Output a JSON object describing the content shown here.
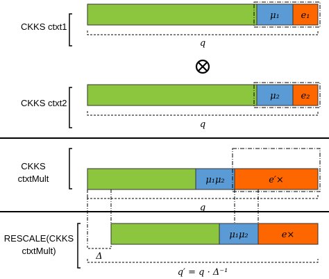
{
  "diagram": {
    "colors": {
      "data": "#8cc63e",
      "message": "#5b9bd5",
      "error": "#fe6600",
      "outline": "#333333"
    },
    "rows": [
      {
        "label": "CKKS ctxt1",
        "message": "μ₁",
        "error": "e₁",
        "modulus": "q"
      },
      {
        "label": "CKKS ctxt2",
        "message": "μ₂",
        "error": "e₂",
        "modulus": "q"
      },
      {
        "label_lines": [
          "CKKS",
          "ctxtMult"
        ],
        "message": "μ₁μ₂",
        "error": "e′×",
        "modulus": "q"
      },
      {
        "label_lines": [
          "RESCALE(CKKS",
          "ctxtMult)"
        ],
        "message": "μ₁μ₂",
        "error": "e×",
        "delta": "Δ",
        "modulus": "q′ = q · Δ⁻¹"
      }
    ],
    "operator": "⊗"
  }
}
